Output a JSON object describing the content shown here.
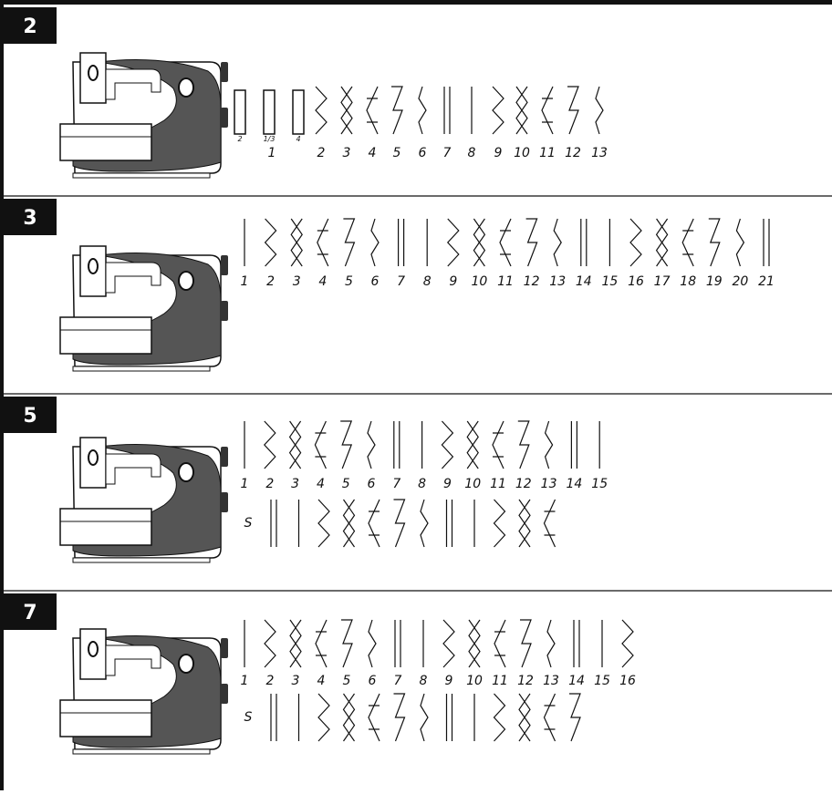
{
  "sections": [
    {
      "badge": "2",
      "sublabels": [
        "2",
        "1/3",
        "4"
      ],
      "numbers": [
        "1",
        "2",
        "3",
        "4",
        "5",
        "6",
        "7",
        "8",
        "9",
        "10",
        "11",
        "12",
        "13"
      ]
    },
    {
      "badge": "3",
      "numbers": [
        "1",
        "2",
        "3",
        "4",
        "5",
        "6",
        "7",
        "8",
        "9",
        "10",
        "11",
        "12",
        "13",
        "14",
        "15",
        "16",
        "17",
        "18",
        "19",
        "20",
        "21"
      ]
    },
    {
      "badge": "5",
      "numbers": [
        "1",
        "2",
        "3",
        "4",
        "5",
        "6",
        "7",
        "8",
        "9",
        "10",
        "11",
        "12",
        "13",
        "14",
        "15"
      ],
      "special_label": "S"
    },
    {
      "badge": "7",
      "numbers": [
        "1",
        "2",
        "3",
        "4",
        "5",
        "6",
        "7",
        "8",
        "9",
        "10",
        "11",
        "12",
        "13",
        "14",
        "15",
        "16"
      ],
      "special_label": "S"
    }
  ]
}
